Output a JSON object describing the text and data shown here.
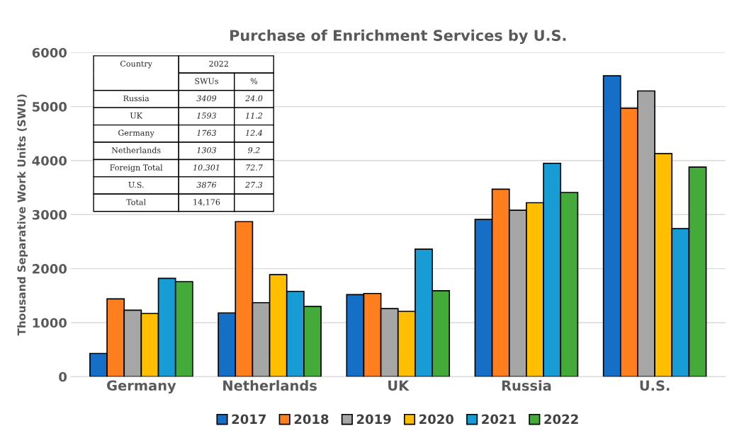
{
  "chart_data": {
    "type": "bar",
    "title": "Purchase of Enrichment Services by U.S.",
    "ylabel": "Thousand Separative Work Units (SWU)",
    "categories": [
      "Germany",
      "Netherlands",
      "UK",
      "Russia",
      "U.S."
    ],
    "series": [
      {
        "name": "2017",
        "color": "#156fc6",
        "values": [
          430,
          1180,
          1520,
          2910,
          5570
        ]
      },
      {
        "name": "2018",
        "color": "#ff7f1f",
        "values": [
          1440,
          2870,
          1540,
          3470,
          4970
        ]
      },
      {
        "name": "2019",
        "color": "#a6a6a6",
        "values": [
          1230,
          1370,
          1260,
          3080,
          5290
        ]
      },
      {
        "name": "2020",
        "color": "#ffbf00",
        "values": [
          1170,
          1890,
          1210,
          3220,
          4130
        ]
      },
      {
        "name": "2021",
        "color": "#189cd5",
        "values": [
          1820,
          1580,
          2360,
          3950,
          2740
        ]
      },
      {
        "name": "2022",
        "color": "#44ab3b",
        "values": [
          1760,
          1300,
          1590,
          3410,
          3880
        ]
      }
    ],
    "ylim": [
      0,
      6000
    ],
    "yticks": [
      0,
      1000,
      2000,
      3000,
      4000,
      5000,
      6000
    ],
    "grid": "y",
    "legend": "bottom",
    "annotations": [
      "Country",
      "2022",
      "SWUs",
      "%",
      "Russia",
      "3409",
      "24.0",
      "UK",
      "1593",
      "11.2",
      "Germany",
      "1763",
      "12.4",
      "Netherlands",
      "1303",
      "9.2",
      "Foreign Total",
      "10,301",
      "72.7",
      "U.S.",
      "3876",
      "27.3",
      "Total",
      "14,176"
    ]
  }
}
